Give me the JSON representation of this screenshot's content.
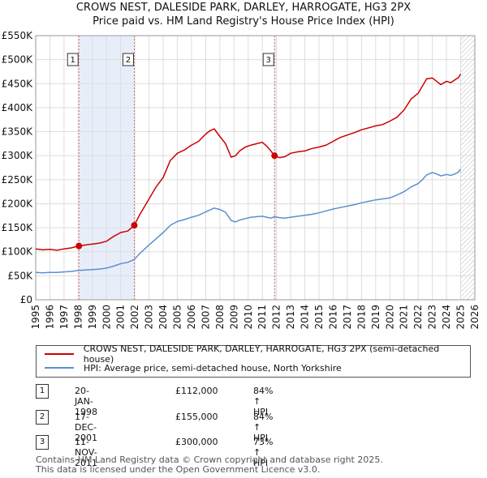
{
  "title": "CROWS NEST, DALESIDE PARK, DARLEY, HARROGATE, HG3 2PX",
  "subtitle": "Price paid vs. HM Land Registry's House Price Index (HPI)",
  "chart_data": {
    "type": "line",
    "xlim": [
      1995,
      2026
    ],
    "ylim": [
      0,
      550000
    ],
    "y_ticks": [
      0,
      50000,
      100000,
      150000,
      200000,
      250000,
      300000,
      350000,
      400000,
      450000,
      500000,
      550000
    ],
    "y_tick_labels": [
      "£0",
      "£50K",
      "£100K",
      "£150K",
      "£200K",
      "£250K",
      "£300K",
      "£350K",
      "£400K",
      "£450K",
      "£500K",
      "£550K"
    ],
    "x_ticks": [
      1995,
      1996,
      1997,
      1998,
      1999,
      2000,
      2001,
      2002,
      2003,
      2004,
      2005,
      2006,
      2007,
      2008,
      2009,
      2010,
      2011,
      2012,
      2013,
      2014,
      2015,
      2016,
      2017,
      2018,
      2019,
      2020,
      2021,
      2022,
      2023,
      2024,
      2025,
      2026
    ],
    "x_tick_labels": [
      "1995",
      "1996",
      "1997",
      "1998",
      "1999",
      "2000",
      "2001",
      "2002",
      "2003",
      "2004",
      "2005",
      "2006",
      "2007",
      "2008",
      "2009",
      "2010",
      "2011",
      "2012",
      "2013",
      "2014",
      "2015",
      "2016",
      "2017",
      "2018",
      "2019",
      "2020",
      "2021",
      "2022",
      "2023",
      "2024",
      "2025",
      "2026"
    ],
    "grid": true,
    "shaded_periods": [
      [
        1998.05,
        2001.96
      ],
      [
        2011.86,
        2012.0
      ]
    ],
    "forecast_hatch_from": 2025.0,
    "series": [
      {
        "name": "CROWS NEST, DALESIDE PARK, DARLEY, HARROGATE, HG3 2PX (semi-detached house)",
        "color": "#cc0000",
        "x": [
          1995.0,
          1995.5,
          1996.0,
          1996.5,
          1997.0,
          1997.5,
          1998.05,
          1998.5,
          1999.0,
          1999.5,
          2000.0,
          2000.5,
          2001.0,
          2001.5,
          2001.96,
          2002.3,
          2002.7,
          2003.0,
          2003.5,
          2004.0,
          2004.5,
          2005.0,
          2005.5,
          2006.0,
          2006.5,
          2007.0,
          2007.3,
          2007.6,
          2008.0,
          2008.4,
          2008.8,
          2009.1,
          2009.4,
          2009.8,
          2010.2,
          2010.6,
          2011.0,
          2011.3,
          2011.6,
          2011.86,
          2012.2,
          2012.6,
          2013.0,
          2013.5,
          2014.0,
          2014.5,
          2015.0,
          2015.5,
          2016.0,
          2016.5,
          2017.0,
          2017.5,
          2018.0,
          2018.5,
          2019.0,
          2019.5,
          2020.0,
          2020.5,
          2021.0,
          2021.5,
          2022.0,
          2022.3,
          2022.6,
          2023.0,
          2023.3,
          2023.6,
          2024.0,
          2024.3,
          2024.6,
          2024.85,
          2025.0
        ],
        "y": [
          106000,
          104000,
          105000,
          103000,
          106000,
          108000,
          112000,
          114000,
          116000,
          118000,
          122000,
          132000,
          140000,
          143000,
          155000,
          175000,
          195000,
          210000,
          235000,
          255000,
          290000,
          305000,
          312000,
          322000,
          330000,
          345000,
          352000,
          356000,
          340000,
          325000,
          297000,
          300000,
          310000,
          318000,
          322000,
          325000,
          328000,
          320000,
          310000,
          300000,
          296000,
          298000,
          305000,
          308000,
          310000,
          315000,
          318000,
          322000,
          330000,
          338000,
          343000,
          348000,
          354000,
          358000,
          362000,
          365000,
          372000,
          380000,
          395000,
          418000,
          430000,
          445000,
          460000,
          462000,
          455000,
          448000,
          455000,
          452000,
          458000,
          463000,
          470000
        ]
      },
      {
        "name": "HPI: Average price, semi-detached house, North Yorkshire",
        "color": "#5b8fd0",
        "x": [
          1995.0,
          1995.5,
          1996.0,
          1996.5,
          1997.0,
          1997.5,
          1998.05,
          1998.5,
          1999.0,
          1999.5,
          2000.0,
          2000.5,
          2001.0,
          2001.5,
          2001.96,
          2002.3,
          2002.7,
          2003.0,
          2003.5,
          2004.0,
          2004.5,
          2005.0,
          2005.5,
          2006.0,
          2006.5,
          2007.0,
          2007.3,
          2007.6,
          2008.0,
          2008.4,
          2008.8,
          2009.1,
          2009.4,
          2009.8,
          2010.2,
          2010.6,
          2011.0,
          2011.3,
          2011.6,
          2011.86,
          2012.2,
          2012.6,
          2013.0,
          2013.5,
          2014.0,
          2014.5,
          2015.0,
          2015.5,
          2016.0,
          2016.5,
          2017.0,
          2017.5,
          2018.0,
          2018.5,
          2019.0,
          2019.5,
          2020.0,
          2020.5,
          2021.0,
          2021.5,
          2022.0,
          2022.3,
          2022.6,
          2023.0,
          2023.3,
          2023.6,
          2024.0,
          2024.3,
          2024.6,
          2024.85,
          2025.0
        ],
        "y": [
          57000,
          56000,
          57000,
          57000,
          58000,
          59000,
          61000,
          62000,
          63000,
          64000,
          66000,
          70000,
          75000,
          78000,
          84000,
          95000,
          106000,
          114000,
          127000,
          140000,
          155000,
          163000,
          167000,
          172000,
          176000,
          183000,
          187000,
          191000,
          188000,
          182000,
          165000,
          162000,
          166000,
          169000,
          172000,
          173000,
          174000,
          172000,
          170000,
          173000,
          171000,
          170000,
          172000,
          174000,
          176000,
          178000,
          181000,
          185000,
          189000,
          192000,
          195000,
          198000,
          202000,
          205000,
          208000,
          210000,
          212000,
          218000,
          225000,
          235000,
          242000,
          250000,
          260000,
          265000,
          262000,
          258000,
          261000,
          259000,
          262000,
          266000,
          272000
        ]
      }
    ],
    "sales": [
      {
        "label": "1",
        "x": 1998.05,
        "y": 112000
      },
      {
        "label": "2",
        "x": 2001.96,
        "y": 155000
      },
      {
        "label": "3",
        "x": 2011.86,
        "y": 300000
      }
    ]
  },
  "legend": {
    "property_label": "CROWS NEST, DALESIDE PARK, DARLEY, HARROGATE, HG3 2PX (semi-detached house)",
    "hpi_label": "HPI: Average price, semi-detached house, North Yorkshire",
    "property_color": "#cc0000",
    "hpi_color": "#5b8fd0"
  },
  "transactions": [
    {
      "num": "1",
      "date": "20-JAN-1998",
      "price": "£112,000",
      "hpi": "84% ↑ HPI"
    },
    {
      "num": "2",
      "date": "17-DEC-2001",
      "price": "£155,000",
      "hpi": "84% ↑ HPI"
    },
    {
      "num": "3",
      "date": "11-NOV-2011",
      "price": "£300,000",
      "hpi": "73% ↑ HPI"
    }
  ],
  "footer": {
    "line1": "Contains HM Land Registry data © Crown copyright and database right 2025.",
    "line2": "This data is licensed under the Open Government Licence v3.0."
  }
}
